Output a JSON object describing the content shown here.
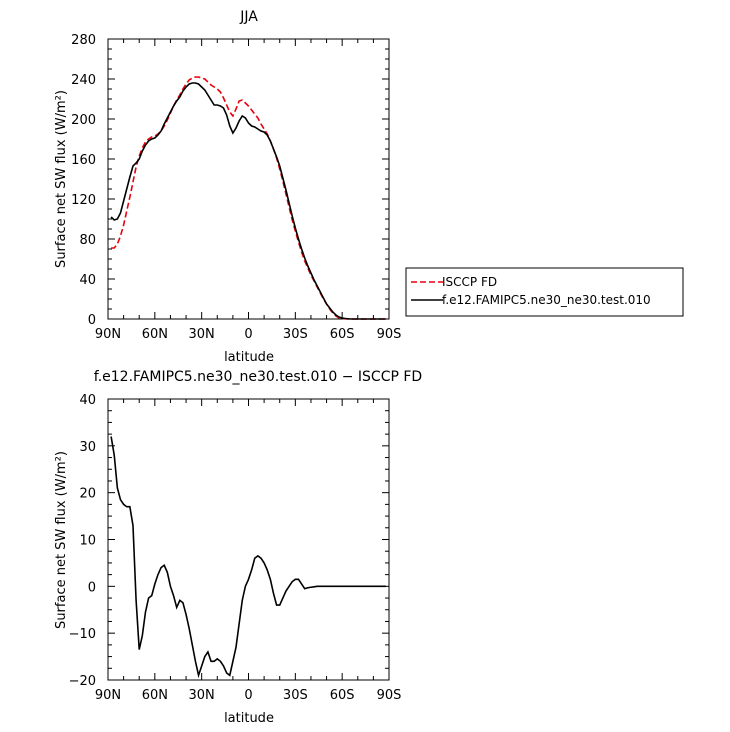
{
  "chart_data": [
    {
      "type": "line",
      "title": "JJA",
      "xlabel": "latitude",
      "ylabel": "Surface net SW flux (W/m²)",
      "xlim": [
        90,
        -90
      ],
      "ylim": [
        0,
        280
      ],
      "xticks": [
        90,
        60,
        30,
        0,
        -30,
        -60,
        -90
      ],
      "xtick_labels": [
        "90N",
        "60N",
        "30N",
        "0",
        "30S",
        "60S",
        "90S"
      ],
      "yticks": [
        0,
        40,
        80,
        120,
        160,
        200,
        240,
        280
      ],
      "ytick_labels": [
        "0",
        "40",
        "80",
        "120",
        "160",
        "200",
        "240",
        "280"
      ],
      "legend_position": "right",
      "series": [
        {
          "name": "ISCCP FD",
          "color": "#e8000b",
          "style": "dashed",
          "x": [
            88,
            86,
            84,
            82,
            80,
            78,
            76,
            74,
            72,
            70,
            68,
            66,
            64,
            62,
            60,
            58,
            56,
            54,
            52,
            50,
            48,
            46,
            44,
            42,
            40,
            38,
            36,
            34,
            32,
            30,
            28,
            26,
            24,
            22,
            20,
            18,
            16,
            14,
            12,
            10,
            8,
            6,
            4,
            2,
            0,
            -2,
            -4,
            -6,
            -8,
            -10,
            -12,
            -14,
            -16,
            -18,
            -20,
            -22,
            -24,
            -26,
            -28,
            -30,
            -32,
            -34,
            -36,
            -38,
            -40,
            -42,
            -44,
            -46,
            -48,
            -50,
            -52,
            -54,
            -56,
            -58,
            -60,
            -62,
            -64,
            -66,
            -68,
            -70,
            -72,
            -74,
            -76,
            -78,
            -80,
            -82,
            -84,
            -86,
            -88
          ],
          "values": [
            71,
            71,
            75,
            83,
            94,
            108,
            122,
            137,
            152,
            163,
            171,
            177,
            180,
            182,
            183,
            185,
            188,
            193,
            199,
            206,
            213,
            219,
            224,
            230,
            235,
            239,
            241,
            242,
            242,
            241,
            240,
            237,
            234,
            232,
            230,
            227,
            221,
            214,
            207,
            203,
            210,
            218,
            219,
            216,
            213,
            209,
            205,
            201,
            195,
            190,
            185,
            178,
            170,
            161,
            150,
            138,
            125,
            112,
            99,
            88,
            77,
            67,
            58,
            51,
            44,
            38,
            32,
            26,
            20,
            15,
            10,
            6,
            3,
            1,
            0.5,
            0.2,
            0,
            0,
            0,
            0,
            0,
            0,
            0,
            0,
            0,
            0,
            0,
            0,
            0
          ]
        },
        {
          "name": "f.e12.FAMIPC5.ne30_ne30.test.010",
          "color": "#000000",
          "style": "solid",
          "x": [
            88,
            86,
            84,
            82,
            80,
            78,
            76,
            74,
            72,
            70,
            68,
            66,
            64,
            62,
            60,
            58,
            56,
            54,
            52,
            50,
            48,
            46,
            44,
            42,
            40,
            38,
            36,
            34,
            32,
            30,
            28,
            26,
            24,
            22,
            20,
            18,
            16,
            14,
            12,
            10,
            8,
            6,
            4,
            2,
            0,
            -2,
            -4,
            -6,
            -8,
            -10,
            -12,
            -14,
            -16,
            -18,
            -20,
            -22,
            -24,
            -26,
            -28,
            -30,
            -32,
            -34,
            -36,
            -38,
            -40,
            -42,
            -44,
            -46,
            -48,
            -50,
            -52,
            -54,
            -56,
            -58,
            -60,
            -62,
            -64,
            -66,
            -68,
            -70,
            -72,
            -74,
            -76,
            -78,
            -80,
            -82,
            -84,
            -86,
            -88
          ],
          "values": [
            102,
            99,
            100,
            106,
            118,
            130,
            142,
            153,
            156,
            160,
            168,
            174,
            178,
            180,
            181,
            184,
            188,
            195,
            201,
            207,
            213,
            218,
            222,
            228,
            232,
            235,
            236,
            236,
            235,
            232,
            229,
            224,
            219,
            214,
            214,
            213,
            211,
            204,
            193,
            186,
            191,
            198,
            203,
            201,
            196,
            193,
            192,
            190,
            188,
            187,
            184,
            178,
            170,
            162,
            153,
            141,
            129,
            116,
            103,
            91,
            80,
            70,
            61,
            53,
            46,
            39,
            33,
            27,
            21,
            15,
            11,
            7,
            4,
            2,
            1,
            0.5,
            0.2,
            0,
            0,
            0,
            0,
            0,
            0,
            0,
            0,
            0,
            0,
            0,
            0
          ]
        }
      ]
    },
    {
      "type": "line",
      "title": "f.e12.FAMIPC5.ne30_ne30.test.010 − ISCCP FD",
      "xlabel": "latitude",
      "ylabel": "Surface net SW flux (W/m²)",
      "xlim": [
        90,
        -90
      ],
      "ylim": [
        -20,
        40
      ],
      "xticks": [
        90,
        60,
        30,
        0,
        -30,
        -60,
        -90
      ],
      "xtick_labels": [
        "90N",
        "60N",
        "30N",
        "0",
        "30S",
        "60S",
        "90S"
      ],
      "yticks": [
        -20,
        -10,
        0,
        10,
        20,
        30,
        40
      ],
      "ytick_labels": [
        "−20",
        "−10",
        "0",
        "10",
        "20",
        "30",
        "40"
      ],
      "series": [
        {
          "color": "#000000",
          "style": "solid",
          "x": [
            88,
            86,
            84,
            82,
            80,
            78,
            76,
            74,
            72,
            70,
            68,
            66,
            64,
            62,
            60,
            58,
            56,
            54,
            52,
            50,
            48,
            46,
            44,
            42,
            40,
            38,
            36,
            34,
            32,
            30,
            28,
            26,
            24,
            22,
            20,
            18,
            16,
            14,
            12,
            10,
            8,
            6,
            4,
            2,
            0,
            -2,
            -4,
            -6,
            -8,
            -10,
            -12,
            -14,
            -16,
            -18,
            -20,
            -22,
            -24,
            -26,
            -28,
            -30,
            -32,
            -34,
            -36,
            -38,
            -40,
            -42,
            -44,
            -46,
            -48,
            -50,
            -52,
            -54,
            -56,
            -58,
            -60,
            -62,
            -64,
            -66,
            -68,
            -70,
            -72,
            -74,
            -76,
            -78,
            -80,
            -82,
            -84,
            -86,
            -88
          ],
          "values": [
            32,
            28,
            21,
            18.5,
            17.5,
            17,
            17,
            13,
            -3,
            -13.5,
            -10.5,
            -5.5,
            -2.5,
            -2,
            0.5,
            2.5,
            4,
            4.5,
            3,
            0,
            -2,
            -4.5,
            -3,
            -3.5,
            -6,
            -9,
            -12.5,
            -16,
            -19,
            -17,
            -15,
            -14,
            -16,
            -16,
            -15.5,
            -16,
            -17,
            -18.5,
            -19,
            -16,
            -13,
            -8,
            -3,
            0,
            1.5,
            3.5,
            6,
            6.5,
            6,
            5,
            3.5,
            1.5,
            -1.5,
            -4,
            -4,
            -2.5,
            -1,
            0,
            1,
            1.5,
            1.5,
            0.5,
            -0.5,
            -0.3,
            -0.2,
            -0.1,
            0,
            0,
            0,
            0,
            0,
            0,
            0,
            0,
            0,
            0,
            0,
            0,
            0,
            0,
            0,
            0,
            0,
            0,
            0,
            0,
            0,
            0,
            0
          ]
        }
      ]
    }
  ]
}
